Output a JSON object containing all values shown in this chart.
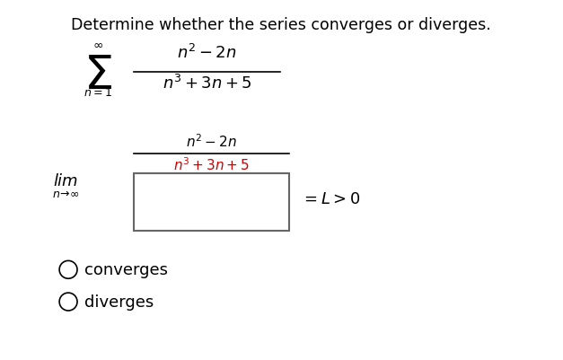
{
  "title": "Determine whether the series converges or diverges.",
  "title_fontsize": 12.5,
  "background_color": "#ffffff",
  "text_color_black": "#000000",
  "text_color_red": "#cc0000",
  "converges": "converges",
  "diverges": "diverges"
}
